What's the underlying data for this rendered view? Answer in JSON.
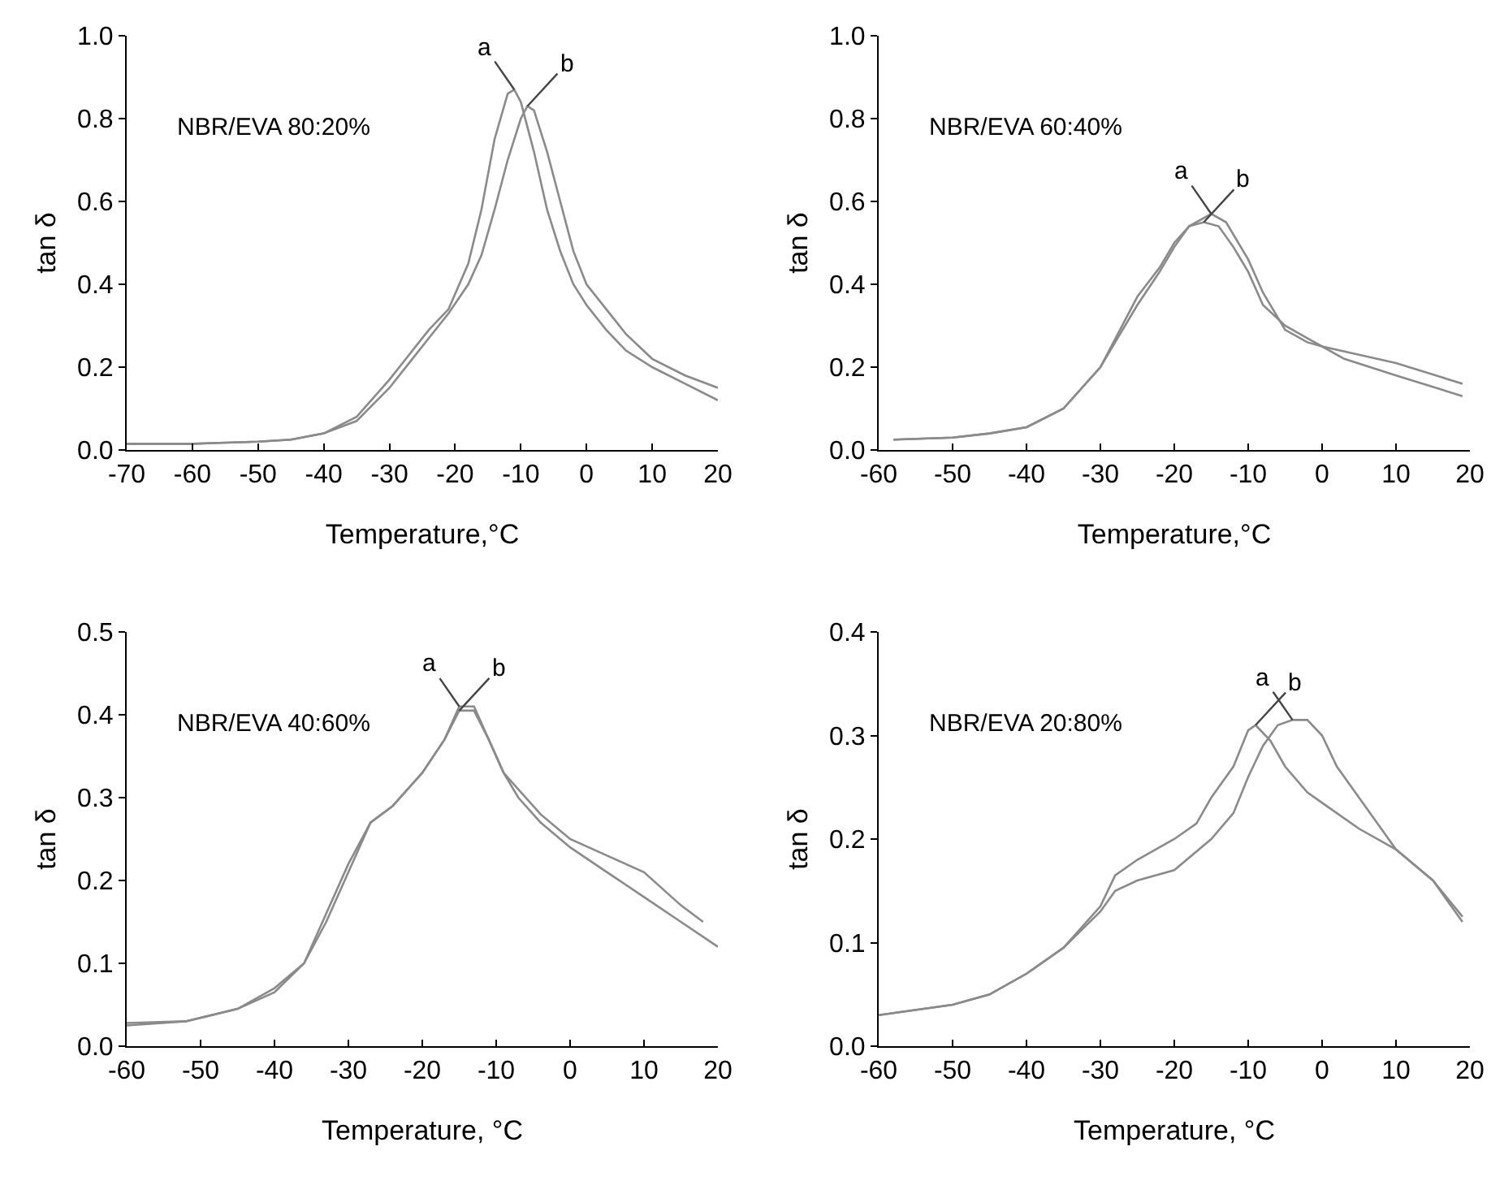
{
  "chart_data": [
    {
      "type": "line",
      "xlabel": "Temperature,°C",
      "ylabel": "tan δ",
      "annotations": [
        "NBR/EVA 80:20%"
      ],
      "xlim": [
        -70,
        20
      ],
      "xticks": [
        -70,
        -60,
        -50,
        -40,
        -30,
        -20,
        -10,
        0,
        10,
        20
      ],
      "ylim": [
        0,
        1
      ],
      "yticks": [
        {
          "value": 0,
          "label": "0.0"
        },
        {
          "value": 0.2,
          "label": "0.2"
        },
        {
          "value": 0.4,
          "label": "0.4"
        },
        {
          "value": 0.6,
          "label": "0.6"
        },
        {
          "value": 0.8,
          "label": "0.8"
        },
        {
          "value": 1,
          "label": "1.0"
        }
      ],
      "grid": false,
      "legend": false,
      "series": [
        {
          "name": "a",
          "color": "#8a8a8a",
          "x": [
            -70,
            -60,
            -50,
            -45,
            -40,
            -35,
            -30,
            -27,
            -24,
            -21,
            -18,
            -16,
            -14,
            -12,
            -11,
            -10,
            -8,
            -6,
            -4,
            -2,
            0,
            3,
            6,
            10,
            15,
            20
          ],
          "values": [
            0.015,
            0.015,
            0.02,
            0.025,
            0.04,
            0.08,
            0.17,
            0.23,
            0.29,
            0.34,
            0.45,
            0.58,
            0.75,
            0.86,
            0.87,
            0.84,
            0.72,
            0.58,
            0.48,
            0.4,
            0.35,
            0.29,
            0.24,
            0.2,
            0.16,
            0.12
          ]
        },
        {
          "name": "b",
          "color": "#8a8a8a",
          "x": [
            -70,
            -60,
            -50,
            -45,
            -40,
            -35,
            -30,
            -27,
            -24,
            -21,
            -18,
            -16,
            -14,
            -12,
            -10,
            -9,
            -8,
            -6,
            -4,
            -2,
            0,
            3,
            6,
            10,
            15,
            20
          ],
          "values": [
            0.015,
            0.015,
            0.02,
            0.025,
            0.04,
            0.07,
            0.15,
            0.21,
            0.27,
            0.33,
            0.4,
            0.47,
            0.58,
            0.7,
            0.8,
            0.83,
            0.82,
            0.72,
            0.6,
            0.48,
            0.4,
            0.34,
            0.28,
            0.22,
            0.18,
            0.15
          ]
        }
      ]
    },
    {
      "type": "line",
      "xlabel": "Temperature,°C",
      "ylabel": "tan δ",
      "annotations": [
        "NBR/EVA 60:40%"
      ],
      "xlim": [
        -60,
        20
      ],
      "xticks": [
        -60,
        -50,
        -40,
        -30,
        -20,
        -10,
        0,
        10,
        20
      ],
      "ylim": [
        0,
        1
      ],
      "yticks": [
        {
          "value": 0,
          "label": "0.0"
        },
        {
          "value": 0.2,
          "label": "0.2"
        },
        {
          "value": 0.4,
          "label": "0.4"
        },
        {
          "value": 0.6,
          "label": "0.6"
        },
        {
          "value": 0.8,
          "label": "0.8"
        },
        {
          "value": 1,
          "label": "1.0"
        }
      ],
      "grid": false,
      "legend": false,
      "series": [
        {
          "name": "a",
          "color": "#8a8a8a",
          "x": [
            -58,
            -50,
            -45,
            -40,
            -35,
            -30,
            -25,
            -22,
            -20,
            -18,
            -15,
            -13,
            -10,
            -8,
            -5,
            -2,
            0,
            3,
            10,
            19
          ],
          "values": [
            0.025,
            0.03,
            0.04,
            0.055,
            0.1,
            0.2,
            0.35,
            0.43,
            0.49,
            0.54,
            0.57,
            0.55,
            0.46,
            0.38,
            0.29,
            0.26,
            0.25,
            0.22,
            0.18,
            0.13
          ]
        },
        {
          "name": "b",
          "color": "#8a8a8a",
          "x": [
            -58,
            -50,
            -45,
            -40,
            -35,
            -30,
            -25,
            -22,
            -20,
            -18,
            -16,
            -14,
            -12,
            -10,
            -8,
            -5,
            -2,
            0,
            5,
            10,
            19
          ],
          "values": [
            0.025,
            0.03,
            0.04,
            0.055,
            0.1,
            0.2,
            0.37,
            0.44,
            0.5,
            0.54,
            0.55,
            0.54,
            0.49,
            0.43,
            0.35,
            0.3,
            0.27,
            0.25,
            0.23,
            0.21,
            0.16
          ]
        }
      ]
    },
    {
      "type": "line",
      "xlabel": "Temperature, °C",
      "ylabel": "tan δ",
      "annotations": [
        "NBR/EVA 40:60%"
      ],
      "xlim": [
        -60,
        20
      ],
      "xticks": [
        -60,
        -50,
        -40,
        -30,
        -20,
        -10,
        0,
        10,
        20
      ],
      "ylim": [
        0,
        0.5
      ],
      "yticks": [
        {
          "value": 0,
          "label": "0.0"
        },
        0.1,
        0.2,
        0.3,
        0.4,
        0.5
      ],
      "grid": false,
      "legend": false,
      "series": [
        {
          "name": "a",
          "color": "#8a8a8a",
          "x": [
            -60,
            -52,
            -45,
            -40,
            -36,
            -33,
            -30,
            -27,
            -24,
            -20,
            -17,
            -15,
            -13,
            -11,
            -9,
            -7,
            -4,
            0,
            5,
            10,
            15,
            20
          ],
          "values": [
            0.025,
            0.03,
            0.045,
            0.065,
            0.1,
            0.15,
            0.21,
            0.27,
            0.29,
            0.33,
            0.37,
            0.41,
            0.41,
            0.37,
            0.33,
            0.3,
            0.27,
            0.24,
            0.21,
            0.18,
            0.15,
            0.12
          ]
        },
        {
          "name": "b",
          "color": "#8a8a8a",
          "x": [
            -60,
            -52,
            -45,
            -40,
            -36,
            -33,
            -30,
            -27,
            -24,
            -20,
            -17,
            -15,
            -13,
            -11,
            -9,
            -7,
            -4,
            0,
            5,
            10,
            15,
            18
          ],
          "values": [
            0.028,
            0.03,
            0.045,
            0.07,
            0.1,
            0.16,
            0.22,
            0.27,
            0.29,
            0.33,
            0.37,
            0.405,
            0.405,
            0.37,
            0.33,
            0.31,
            0.28,
            0.25,
            0.23,
            0.21,
            0.17,
            0.15
          ]
        }
      ]
    },
    {
      "type": "line",
      "xlabel": "Temperature, °C",
      "ylabel": "tan δ",
      "annotations": [
        "NBR/EVA 20:80%"
      ],
      "xlim": [
        -60,
        20
      ],
      "xticks": [
        -60,
        -50,
        -40,
        -30,
        -20,
        -10,
        0,
        10,
        20
      ],
      "ylim": [
        0,
        0.4
      ],
      "yticks": [
        {
          "value": 0,
          "label": "0.0"
        },
        0.1,
        0.2,
        0.3,
        0.4
      ],
      "grid": false,
      "legend": false,
      "series": [
        {
          "name": "a",
          "color": "#8a8a8a",
          "x": [
            -60,
            -50,
            -45,
            -40,
            -35,
            -30,
            -28,
            -25,
            -20,
            -15,
            -12,
            -10,
            -8,
            -6,
            -4,
            -2,
            0,
            2,
            5,
            8,
            10,
            15,
            19
          ],
          "values": [
            0.03,
            0.04,
            0.05,
            0.07,
            0.095,
            0.13,
            0.15,
            0.16,
            0.17,
            0.2,
            0.225,
            0.26,
            0.29,
            0.31,
            0.315,
            0.315,
            0.3,
            0.27,
            0.24,
            0.21,
            0.19,
            0.16,
            0.125
          ]
        },
        {
          "name": "b",
          "color": "#8a8a8a",
          "x": [
            -60,
            -50,
            -45,
            -40,
            -35,
            -30,
            -28,
            -25,
            -20,
            -17,
            -15,
            -12,
            -10,
            -9,
            -7,
            -5,
            -2,
            0,
            5,
            10,
            15,
            19
          ],
          "values": [
            0.03,
            0.04,
            0.05,
            0.07,
            0.095,
            0.135,
            0.165,
            0.18,
            0.2,
            0.215,
            0.24,
            0.27,
            0.305,
            0.31,
            0.295,
            0.27,
            0.245,
            0.235,
            0.21,
            0.19,
            0.16,
            0.12
          ]
        }
      ]
    }
  ]
}
